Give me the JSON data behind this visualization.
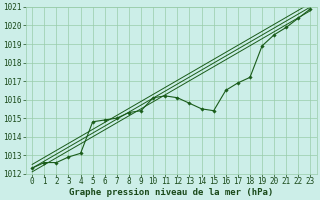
{
  "title": "Graphe pression niveau de la mer (hPa)",
  "xlabel_hours": [
    0,
    1,
    2,
    3,
    4,
    5,
    6,
    7,
    8,
    9,
    10,
    11,
    12,
    13,
    14,
    15,
    16,
    17,
    18,
    19,
    20,
    21,
    22,
    23
  ],
  "ylim": [
    1012,
    1021
  ],
  "yticks": [
    1012,
    1013,
    1014,
    1015,
    1016,
    1017,
    1018,
    1019,
    1020,
    1021
  ],
  "data_points": [
    1012.3,
    1012.6,
    1012.6,
    1012.9,
    1013.1,
    1014.8,
    1014.9,
    1015.0,
    1015.3,
    1015.4,
    1016.1,
    1016.2,
    1016.1,
    1015.8,
    1015.5,
    1015.4,
    1016.5,
    1016.9,
    1017.2,
    1018.9,
    1019.5,
    1019.9,
    1020.4,
    1020.9
  ],
  "trend_line": [
    1012.3,
    1021.0
  ],
  "bg_color": "#cceee8",
  "grid_color": "#99ccaa",
  "line_color": "#1a5c1a",
  "marker_color": "#1a5c1a",
  "trend_color": "#1a5c1a",
  "label_color": "#1a4a1a",
  "tick_fontsize": 5.5,
  "label_fontsize": 6.5
}
